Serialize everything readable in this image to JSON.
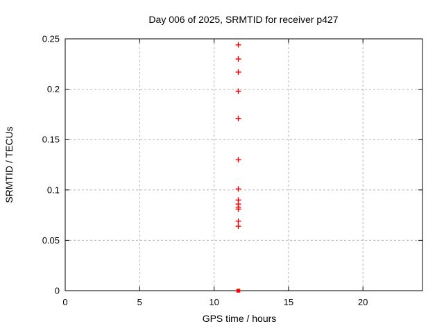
{
  "chart_data": {
    "type": "scatter",
    "title": "Day 006 of 2025, SRMTID for receiver p427",
    "xlabel": "GPS time / hours",
    "ylabel": "SRMTID / TECUs",
    "xlim": [
      0,
      24
    ],
    "ylim": [
      0,
      0.25
    ],
    "grid": true,
    "legend_position": "none",
    "marker": "plus",
    "zero_marker_style": "filled-square",
    "colors": {
      "marker": "#ff0000",
      "grid": "#b3b3b3",
      "axis": "#000000",
      "text": "#000000",
      "background": "#ffffff"
    },
    "x_ticks": [
      {
        "v": 0,
        "label": "0"
      },
      {
        "v": 5,
        "label": "5"
      },
      {
        "v": 10,
        "label": "10"
      },
      {
        "v": 15,
        "label": "15"
      },
      {
        "v": 20,
        "label": "20"
      }
    ],
    "y_ticks": [
      {
        "v": 0.0,
        "label": "0"
      },
      {
        "v": 0.05,
        "label": "0.05"
      },
      {
        "v": 0.1,
        "label": "0.1"
      },
      {
        "v": 0.15,
        "label": "0.15"
      },
      {
        "v": 0.2,
        "label": "0.2"
      },
      {
        "v": 0.25,
        "label": "0.25"
      }
    ],
    "series": [
      {
        "name": "SRMTID",
        "points": [
          [
            11.63,
            0.244
          ],
          [
            11.63,
            0.23
          ],
          [
            11.63,
            0.217
          ],
          [
            11.63,
            0.198
          ],
          [
            11.63,
            0.171
          ],
          [
            11.63,
            0.13
          ],
          [
            11.63,
            0.101
          ],
          [
            11.63,
            0.09
          ],
          [
            11.63,
            0.086
          ],
          [
            11.63,
            0.083
          ],
          [
            11.63,
            0.081
          ],
          [
            11.63,
            0.069
          ],
          [
            11.63,
            0.064
          ],
          [
            11.63,
            0.0
          ]
        ]
      }
    ]
  }
}
